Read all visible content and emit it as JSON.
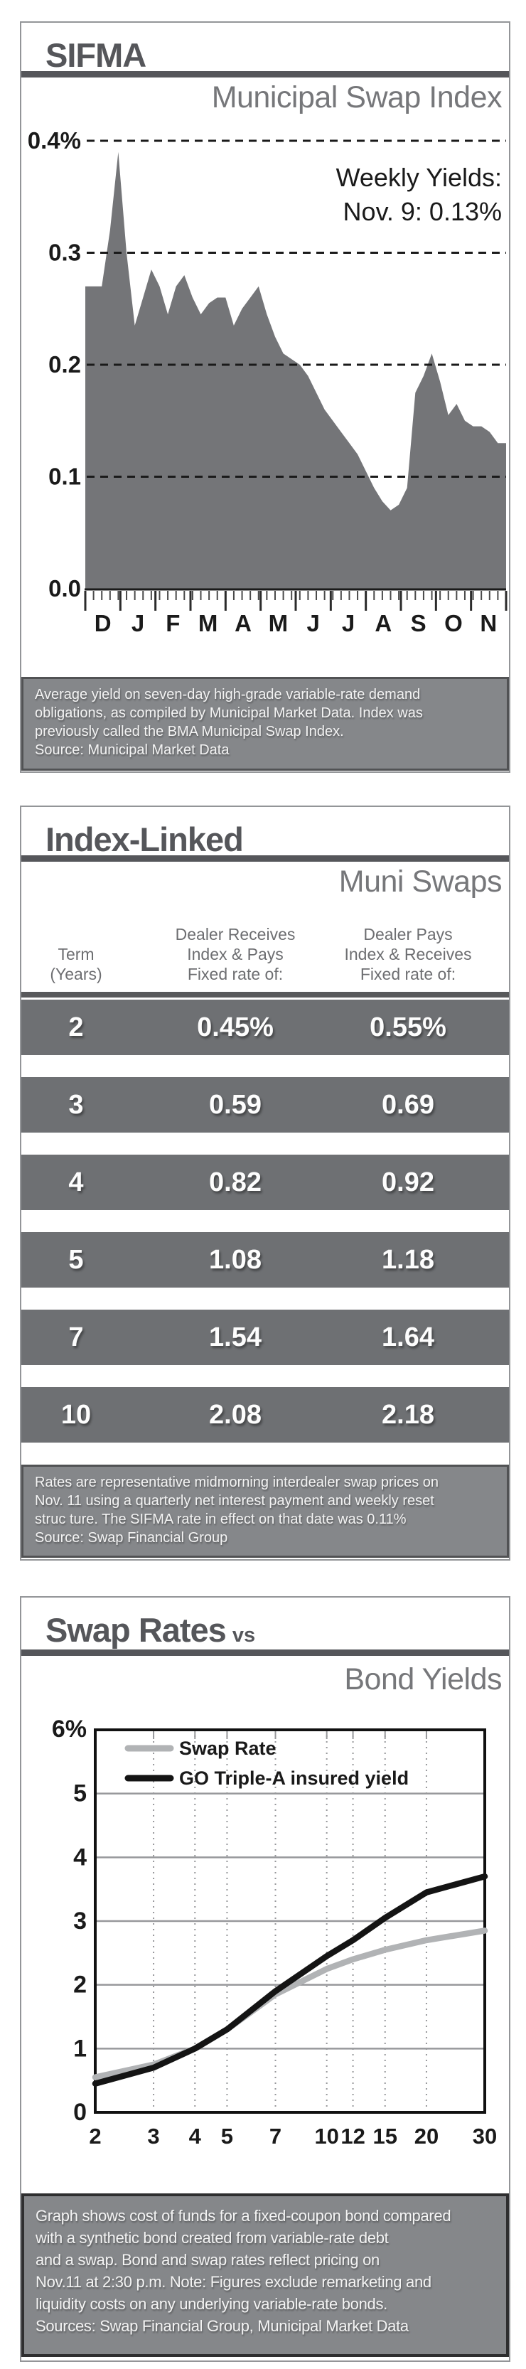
{
  "colors": {
    "title_dark": "#55565a",
    "subtitle_gray": "#76777a",
    "panel_border": "#939598",
    "area_fill": "#747578",
    "table_row_bg": "#6e7073",
    "footer_bg": "#85878a",
    "swap_rate_line": "#b1b3b5",
    "go_yield_line": "#141414"
  },
  "panels": [
    {
      "title": "SIFMA",
      "subtitle": "Municipal Swap Index",
      "footer": "Average yield on seven-day high-grade variable-rate demand\nobligations, as compiled by Municipal Market Data.  Index was\npreviously called the BMA Municipal Swap Index.\nSource: Municipal Market Data"
    },
    {
      "title": "Index-Linked",
      "subtitle": "Muni Swaps",
      "table": {
        "col_headers": [
          "Term\n(Years)",
          "Dealer Receives\nIndex & Pays\nFixed rate of:",
          "Dealer Pays\nIndex & Receives\nFixed rate of:"
        ],
        "rows": [
          {
            "term": "2",
            "receives": "0.45%",
            "pays": "0.55%"
          },
          {
            "term": "3",
            "receives": "0.59",
            "pays": "0.69"
          },
          {
            "term": "4",
            "receives": "0.82",
            "pays": "0.92"
          },
          {
            "term": "5",
            "receives": "1.08",
            "pays": "1.18"
          },
          {
            "term": "7",
            "receives": "1.54",
            "pays": "1.64"
          },
          {
            "term": "10",
            "receives": "2.08",
            "pays": "2.18"
          }
        ]
      },
      "footer": "Rates are representative midmorning interdealer swap prices on\nNov. 11 using a quarterly net interest payment and weekly reset\nstruc ture. The SIFMA rate in effect on that date was 0.11%\nSource: Swap Financial Group"
    },
    {
      "title": "Swap Rates",
      "title_suffix": "vs",
      "subtitle": "Bond Yields",
      "footer": "Graph shows cost of funds for a fixed-coupon bond compared\nwith a synthetic bond created from variable-rate debt\nand a swap. Bond and swap rates reflect pricing on\nNov.11 at 2:30 p.m. Note: Figures exclude remarketing and\nliquidity costs on any underlying variable-rate bonds.\nSources: Swap Financial Group, Municipal Market Data"
    }
  ],
  "chart_data": [
    {
      "type": "area",
      "title": "Municipal Swap Index",
      "annotation_line1": "Weekly Yields:",
      "annotation_line2": "Nov. 9: 0.13%",
      "ylim": [
        0,
        0.4
      ],
      "yticks": [
        "0.4%",
        "0.3",
        "0.2",
        "0.1",
        "0.0"
      ],
      "x_months": [
        "D",
        "J",
        "F",
        "M",
        "A",
        "M",
        "J",
        "J",
        "A",
        "S",
        "O",
        "N"
      ],
      "x_unit": "weekly",
      "area_color": "#747578",
      "weekly_values": [
        0.27,
        0.27,
        0.27,
        0.32,
        0.39,
        0.3,
        0.235,
        0.26,
        0.285,
        0.27,
        0.245,
        0.27,
        0.28,
        0.26,
        0.245,
        0.255,
        0.26,
        0.26,
        0.235,
        0.25,
        0.26,
        0.27,
        0.245,
        0.225,
        0.21,
        0.205,
        0.2,
        0.19,
        0.175,
        0.16,
        0.15,
        0.14,
        0.13,
        0.12,
        0.105,
        0.09,
        0.078,
        0.07,
        0.075,
        0.09,
        0.175,
        0.19,
        0.21,
        0.185,
        0.155,
        0.165,
        0.15,
        0.145,
        0.145,
        0.14,
        0.13,
        0.13
      ]
    },
    {
      "type": "line",
      "title": "Swap Rates vs Bond Yields",
      "x": [
        2,
        3,
        4,
        5,
        7,
        10,
        12,
        15,
        20,
        30
      ],
      "x_scale": "log",
      "ylim": [
        0,
        6
      ],
      "yticks": [
        "6%",
        "5",
        "4",
        "3",
        "2",
        "1",
        "0"
      ],
      "grid": true,
      "legend_position": "top-left",
      "series": [
        {
          "name": "Swap Rate",
          "color": "#b1b3b5",
          "values": [
            0.55,
            0.75,
            1.0,
            1.3,
            1.85,
            2.25,
            2.4,
            2.55,
            2.7,
            2.85
          ]
        },
        {
          "name": "GO Triple-A insured yield",
          "color": "#141414",
          "values": [
            0.45,
            0.7,
            1.0,
            1.3,
            1.9,
            2.45,
            2.7,
            3.05,
            3.45,
            3.7
          ]
        }
      ]
    }
  ]
}
